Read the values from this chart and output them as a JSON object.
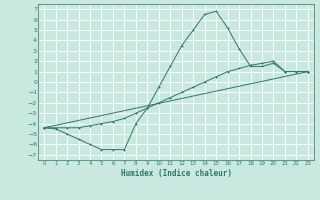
{
  "title": "",
  "xlabel": "Humidex (Indice chaleur)",
  "bg_color": "#c8e8e0",
  "grid_color": "#ffffff",
  "line_color": "#2a7a6a",
  "xlim": [
    -0.5,
    23.5
  ],
  "ylim": [
    -7.5,
    7.5
  ],
  "xticks": [
    0,
    1,
    2,
    3,
    4,
    5,
    6,
    7,
    8,
    9,
    10,
    11,
    12,
    13,
    14,
    15,
    16,
    17,
    18,
    19,
    20,
    21,
    22,
    23
  ],
  "yticks": [
    -7,
    -6,
    -5,
    -4,
    -3,
    -2,
    -1,
    0,
    1,
    2,
    3,
    4,
    5,
    6,
    7
  ],
  "curve1_x": [
    0,
    1,
    2,
    3,
    4,
    5,
    6,
    7,
    8,
    9,
    10,
    11,
    12,
    13,
    14,
    15,
    16,
    17,
    18,
    19,
    20,
    21,
    22,
    23
  ],
  "curve1_y": [
    -4.4,
    -4.5,
    -5.0,
    -5.5,
    -6.0,
    -6.5,
    -6.5,
    -6.5,
    -4.0,
    -2.5,
    -0.5,
    1.5,
    3.5,
    5.0,
    6.5,
    6.8,
    5.2,
    3.2,
    1.5,
    1.5,
    1.8,
    1.0,
    1.0,
    1.0
  ],
  "curve2_x": [
    0,
    1,
    2,
    3,
    4,
    5,
    6,
    7,
    8,
    9,
    10,
    11,
    12,
    13,
    14,
    15,
    16,
    17,
    18,
    19,
    20,
    21,
    22,
    23
  ],
  "curve2_y": [
    -4.4,
    -4.4,
    -4.4,
    -4.4,
    -4.2,
    -4.0,
    -3.8,
    -3.5,
    -3.0,
    -2.5,
    -2.0,
    -1.5,
    -1.0,
    -0.5,
    0.0,
    0.5,
    1.0,
    1.3,
    1.6,
    1.8,
    2.0,
    1.0,
    1.0,
    1.0
  ],
  "line_x": [
    0,
    23
  ],
  "line_y": [
    -4.4,
    1.0
  ]
}
